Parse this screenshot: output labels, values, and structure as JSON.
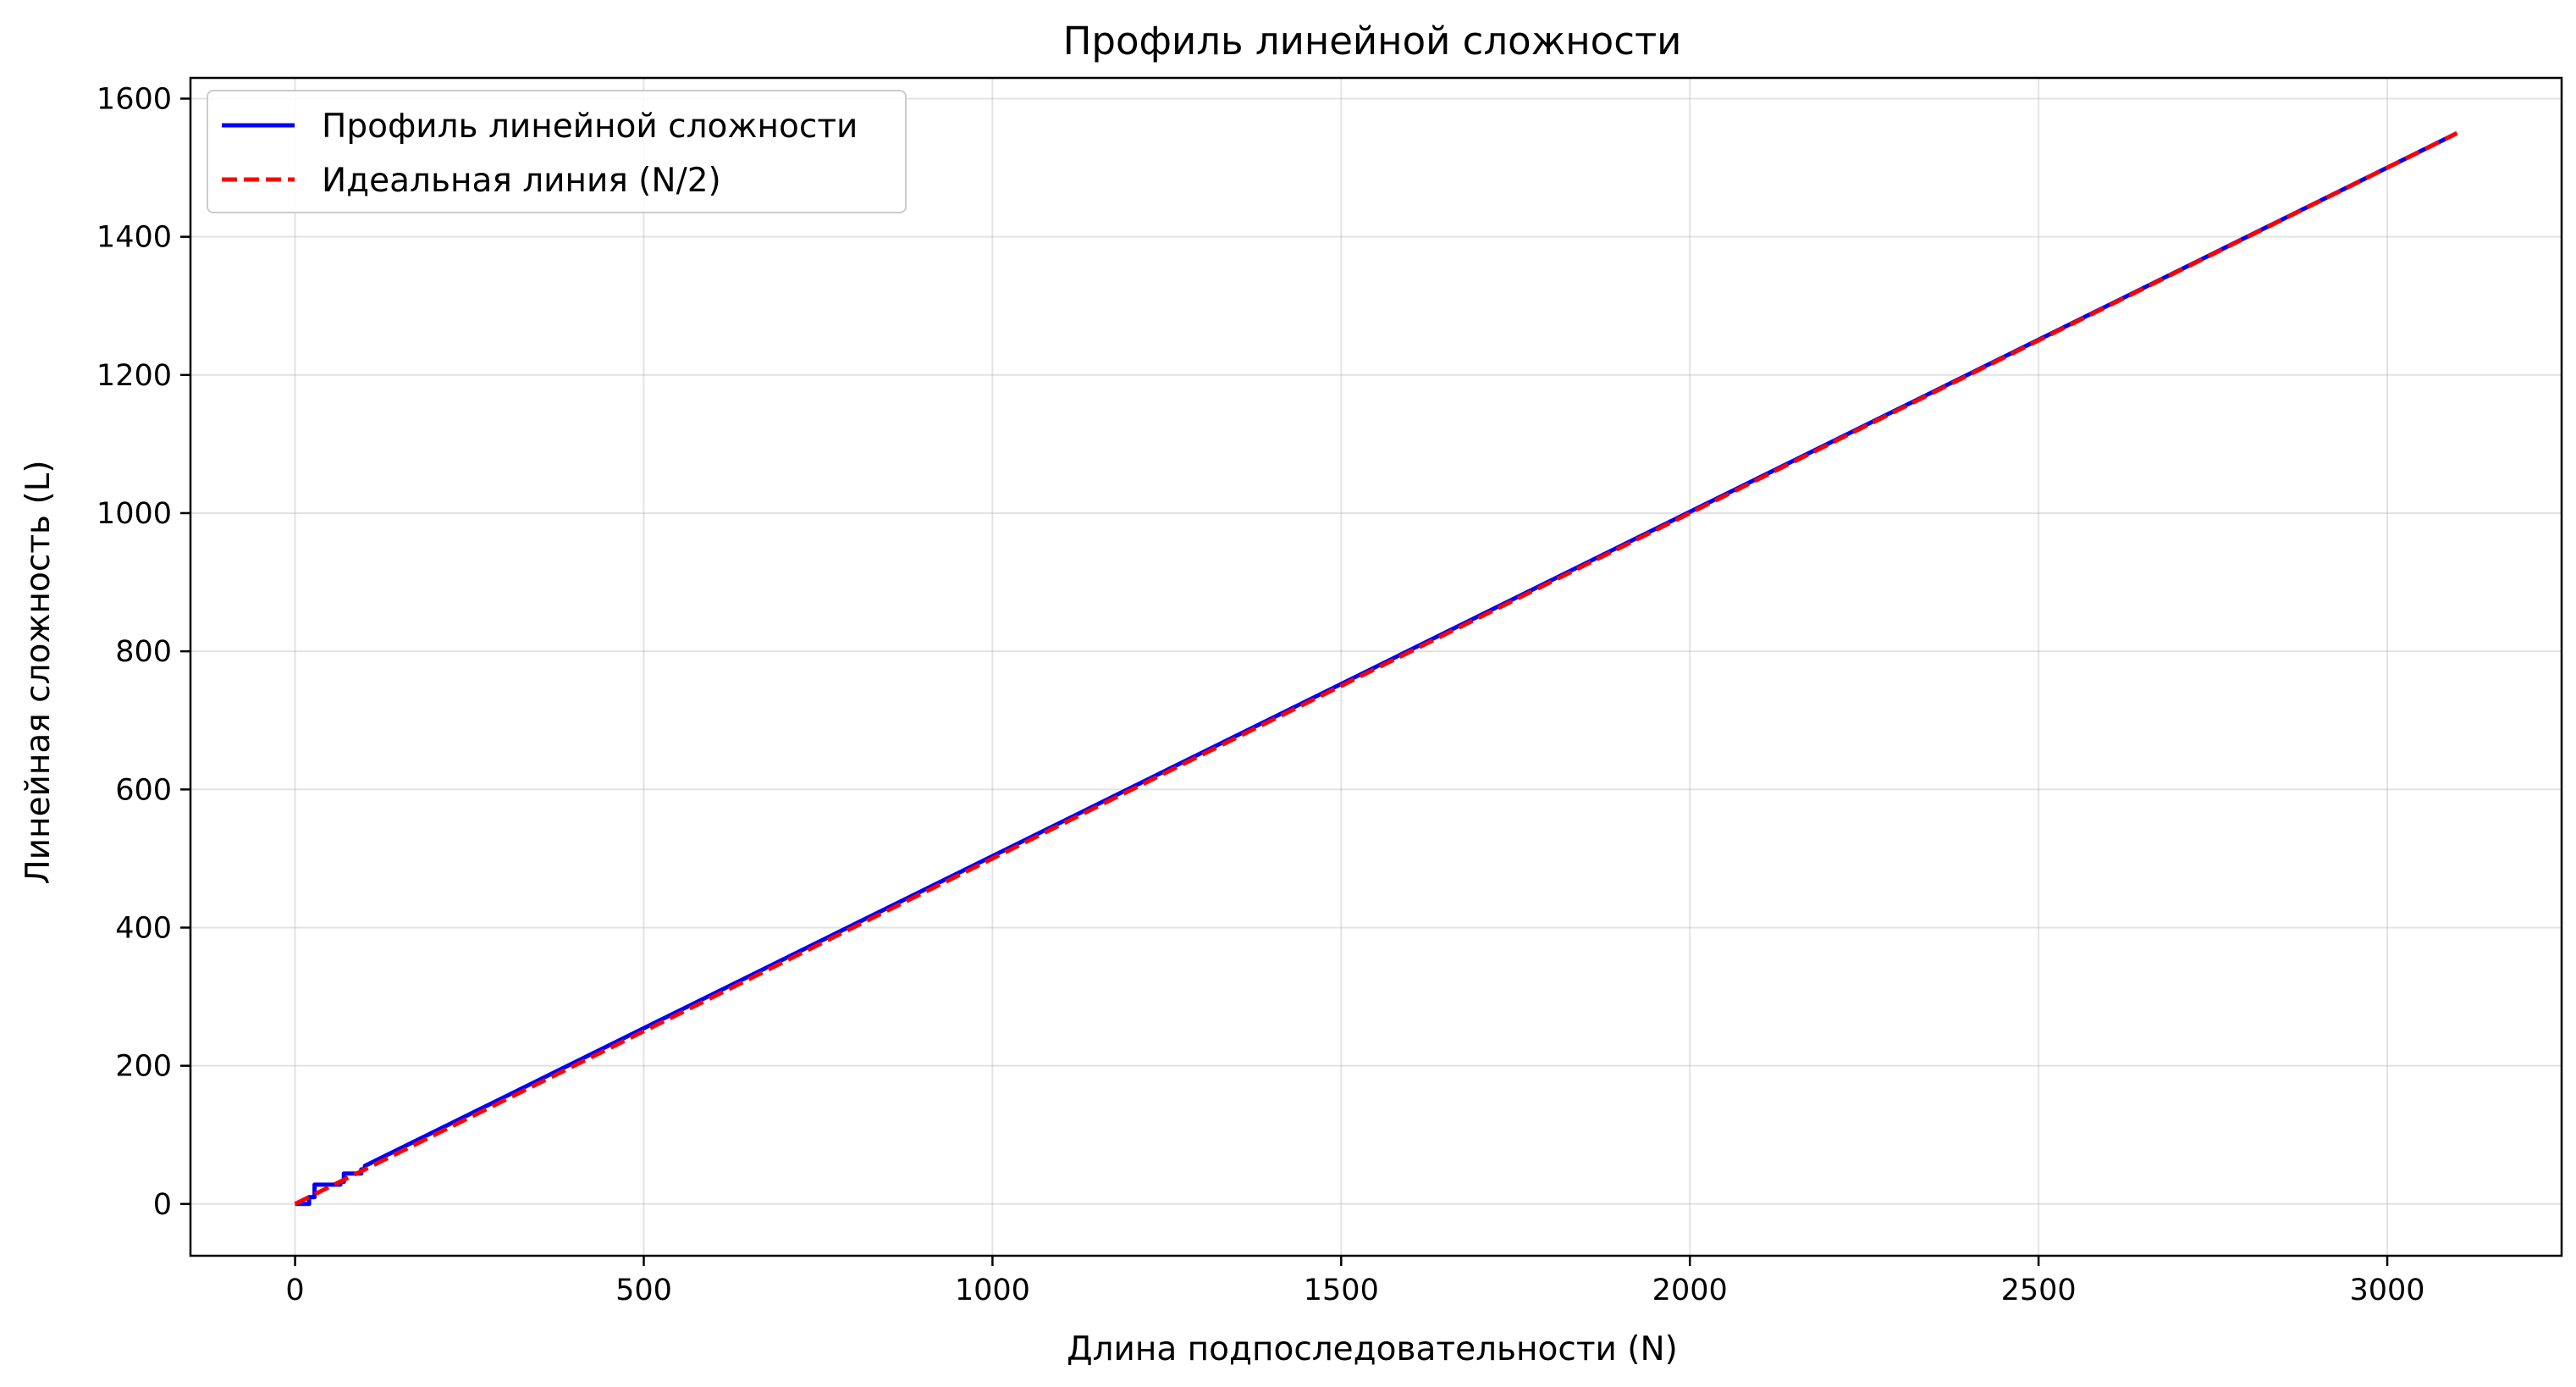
{
  "chart_data": {
    "type": "line",
    "title": "Профиль линейной сложности",
    "xlabel": "Длина подпоследовательности (N)",
    "ylabel": "Линейная сложность (L)",
    "xlim": [
      -150,
      3250
    ],
    "ylim": [
      -75,
      1630
    ],
    "xticks": [
      0,
      500,
      1000,
      1500,
      2000,
      2500,
      3000
    ],
    "xtick_labels": [
      "0",
      "500",
      "1000",
      "1500",
      "2000",
      "2500",
      "3000"
    ],
    "yticks": [
      0,
      200,
      400,
      600,
      800,
      1000,
      1200,
      1400,
      1600
    ],
    "ytick_labels": [
      "0",
      "200",
      "400",
      "600",
      "800",
      "1000",
      "1200",
      "1400",
      "1600"
    ],
    "grid": true,
    "legend_position": "top-left",
    "series": [
      {
        "name": "Профиль линейной сложности",
        "color": "#0000ff",
        "style": "solid",
        "x": [
          0,
          20,
          20,
          28,
          28,
          65,
          65,
          70,
          70,
          95,
          95,
          100,
          100,
          3100
        ],
        "y": [
          0,
          0,
          10,
          10,
          28,
          28,
          32,
          32,
          44,
          44,
          50,
          50,
          55,
          1550
        ]
      },
      {
        "name": "Идеальная линия (N/2)",
        "color": "#ff0000",
        "style": "dashed",
        "x": [
          0,
          3100
        ],
        "y": [
          0,
          1550
        ]
      }
    ]
  }
}
